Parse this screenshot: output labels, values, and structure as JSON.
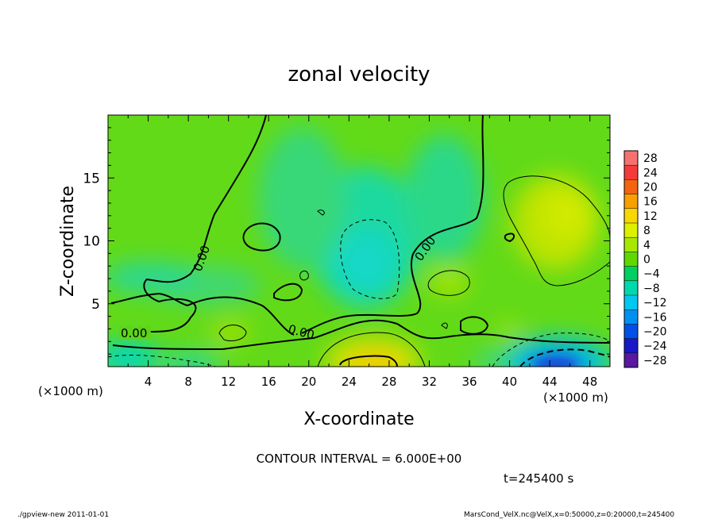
{
  "chart_data": {
    "type": "heatmap",
    "title": "zonal velocity",
    "xlabel": "X-coordinate",
    "ylabel": "Z-coordinate",
    "x_unit_left": "(×1000 m)",
    "x_unit_right": "(×1000 m)",
    "xlim": [
      0,
      50
    ],
    "ylim": [
      0,
      20
    ],
    "x_ticks": [
      "4",
      "8",
      "12",
      "16",
      "20",
      "24",
      "28",
      "32",
      "36",
      "40",
      "44",
      "48"
    ],
    "x_tick_values": [
      4,
      8,
      12,
      16,
      20,
      24,
      28,
      32,
      36,
      40,
      44,
      48
    ],
    "y_ticks": [
      "5",
      "10",
      "15"
    ],
    "y_tick_values": [
      5,
      10,
      15
    ],
    "contour_interval": "CONTOUR INTERVAL = 6.000E+00",
    "time_label": "t=245400 s",
    "contour_labels": [
      "0.00",
      "0.00",
      "0.00",
      "0.00",
      "0.00"
    ],
    "colorbar": {
      "levels": [
        "28",
        "24",
        "20",
        "16",
        "12",
        "8",
        "4",
        "0",
        "−4",
        "−8",
        "−12",
        "−16",
        "−20",
        "−24",
        "−28"
      ],
      "colors": [
        "#f77070",
        "#f53a3a",
        "#f26410",
        "#f7a000",
        "#f7d800",
        "#dcf000",
        "#a8e800",
        "#60d800",
        "#00d060",
        "#00d8b0",
        "#00c8f0",
        "#0090f0",
        "#0050e8",
        "#1818c8",
        "#5818a0"
      ]
    },
    "grid": false,
    "legend_placement": "right"
  },
  "footer": {
    "left": "./gpview-new   2011-01-01",
    "right": "MarsCond_VelX.nc@VelX,x=0:50000,z=0:20000,t=245400"
  }
}
